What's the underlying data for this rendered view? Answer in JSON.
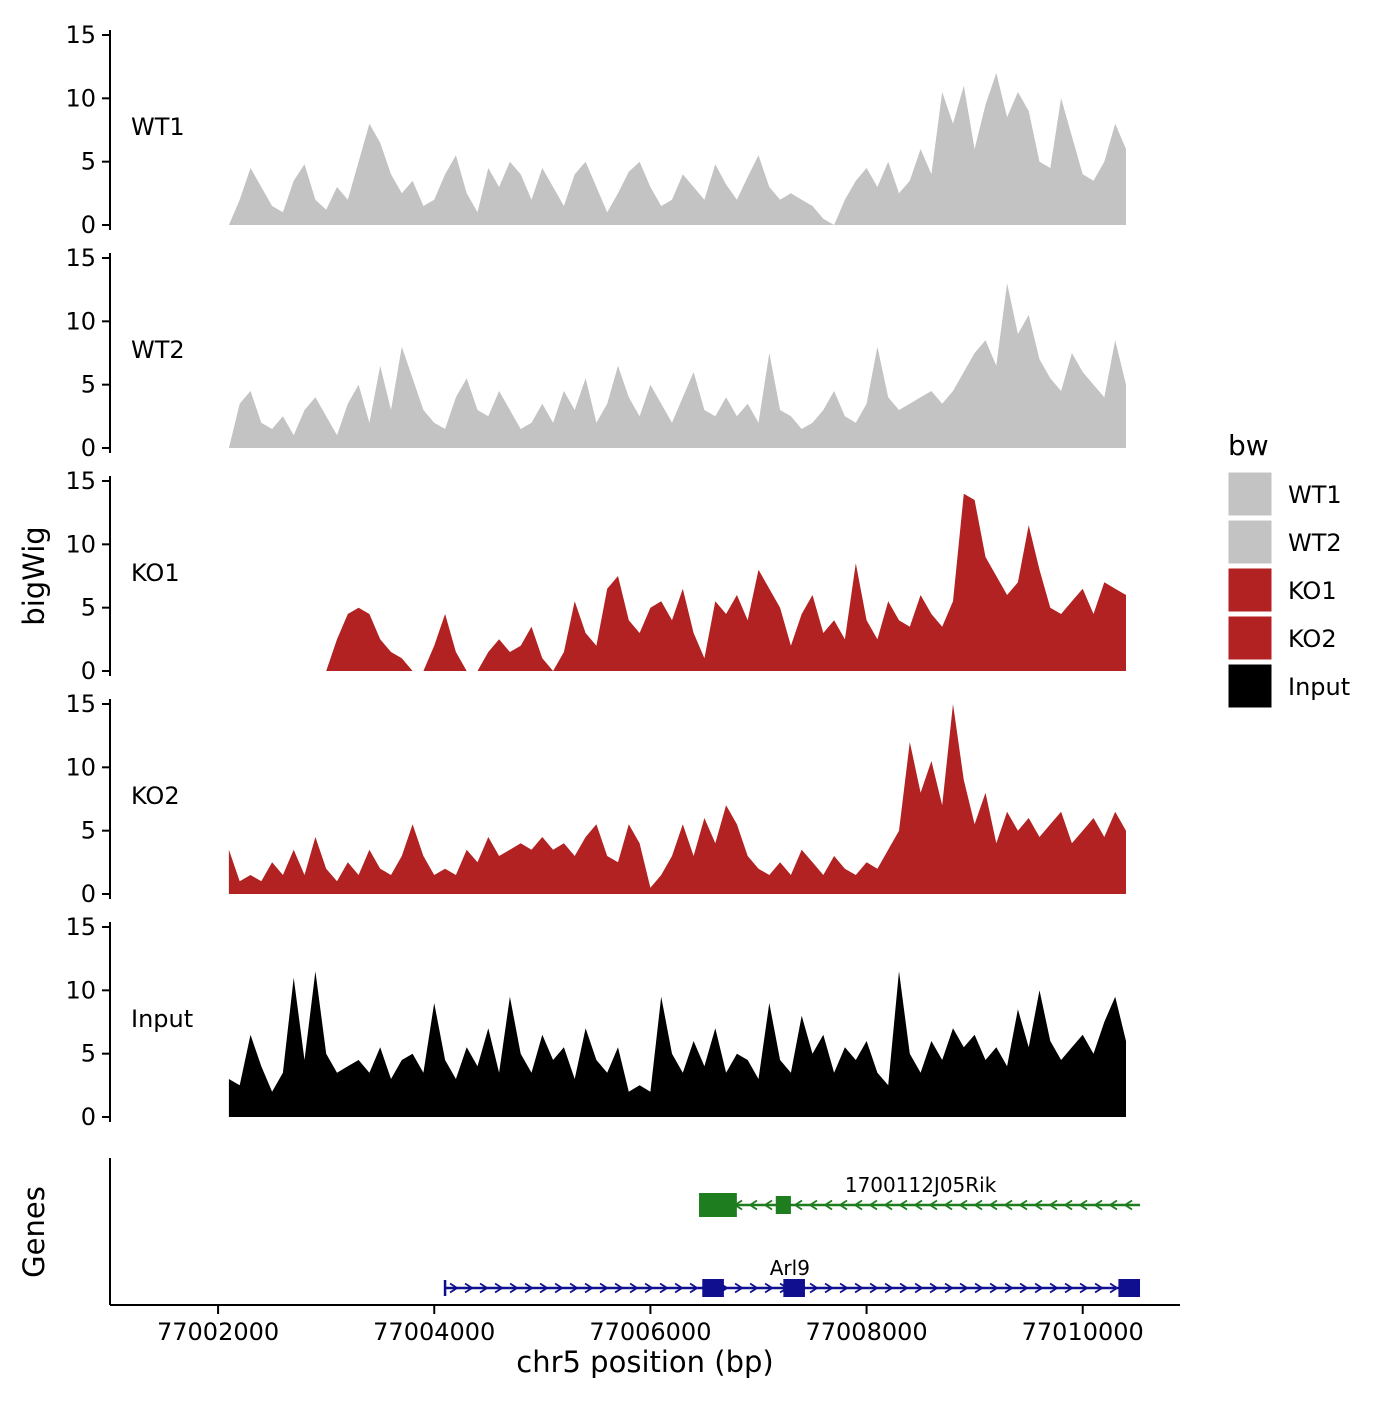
{
  "figure": {
    "ylabel": "bigWig",
    "genes_label": "Genes",
    "xlabel": "chr5 position (bp)"
  },
  "legend": {
    "title": "bw",
    "entries": [
      {
        "label": "WT1",
        "color": "#c3c3c3"
      },
      {
        "label": "WT2",
        "color": "#c3c3c3"
      },
      {
        "label": "KO1",
        "color": "#b22222"
      },
      {
        "label": "KO2",
        "color": "#b22222"
      },
      {
        "label": "Input",
        "color": "#000000"
      }
    ]
  },
  "chart_data": {
    "type": "area",
    "title": "",
    "xlabel": "chr5 position (bp)",
    "ylabel": "bigWig",
    "x_axis": {
      "min": 77001000,
      "max": 77010900,
      "ticks": [
        77002000,
        77004000,
        77006000,
        77008000,
        77010000
      ]
    },
    "y_axis": {
      "min": 0,
      "max": 15,
      "ticks": [
        0,
        5,
        10,
        15
      ]
    },
    "x_start": 77002100,
    "x_step": 100,
    "series": [
      {
        "name": "WT1",
        "color": "#c3c3c3",
        "values": [
          0,
          2,
          4.5,
          3,
          1.5,
          1,
          3.5,
          4.8,
          2,
          1.2,
          3,
          2,
          5,
          8,
          6.5,
          4,
          2.5,
          3.5,
          1.5,
          2,
          4,
          5.5,
          2.5,
          1,
          4.5,
          3,
          5,
          4,
          2,
          4.5,
          3,
          1.5,
          4,
          5,
          3,
          1,
          2.5,
          4.2,
          5,
          3,
          1.5,
          2,
          4,
          3,
          2,
          4.8,
          3.2,
          2,
          3.8,
          5.5,
          3,
          2,
          2.5,
          2,
          1.5,
          0.5,
          0,
          2,
          3.5,
          4.5,
          3,
          5,
          2.5,
          3.5,
          6,
          4,
          10.5,
          8,
          11,
          6,
          9.5,
          12,
          8.5,
          10.5,
          9,
          5,
          4.5,
          10,
          7,
          4,
          3.5,
          5,
          8,
          6
        ]
      },
      {
        "name": "WT2",
        "color": "#c3c3c3",
        "values": [
          0,
          3.5,
          4.5,
          2,
          1.5,
          2.5,
          1,
          3,
          4,
          2.5,
          1,
          3.5,
          5,
          2,
          6.5,
          3,
          8,
          5.5,
          3,
          2,
          1.5,
          4,
          5.5,
          3,
          2.5,
          4.5,
          3,
          1.5,
          2,
          3.5,
          2,
          4.5,
          3,
          5.5,
          2,
          3.5,
          6.5,
          4,
          2.5,
          5,
          3.5,
          2,
          4,
          6,
          3,
          2.5,
          4,
          2.5,
          3.5,
          2,
          7.5,
          3,
          2.5,
          1.5,
          2,
          3,
          4.5,
          2.5,
          2,
          3.5,
          8,
          4,
          3,
          3.5,
          4,
          4.5,
          3.5,
          4.5,
          6,
          7.5,
          8.5,
          6.5,
          13,
          9,
          10.5,
          7,
          5.5,
          4.5,
          7.5,
          6,
          5,
          4,
          8.5,
          5
        ]
      },
      {
        "name": "KO1",
        "color": "#b22222",
        "values": [
          0,
          0,
          0,
          0,
          0,
          0,
          0,
          0,
          0,
          0,
          2.5,
          4.5,
          5,
          4.5,
          2.5,
          1.5,
          1,
          0,
          0,
          2,
          4.5,
          1.5,
          0,
          0,
          1.5,
          2.5,
          1.5,
          2,
          3.5,
          1,
          0,
          1.5,
          5.5,
          3,
          2,
          6.5,
          7.5,
          4,
          3,
          5,
          5.5,
          4,
          6.5,
          3,
          1,
          5.5,
          4.5,
          6,
          4,
          8,
          6.5,
          5,
          2,
          4.5,
          6,
          3,
          4,
          2.5,
          8.5,
          4,
          2.5,
          5.5,
          4,
          3.5,
          6,
          4.5,
          3.5,
          5.5,
          14,
          13.5,
          9,
          7.5,
          6,
          7,
          11.5,
          8,
          5,
          4.5,
          5.5,
          6.5,
          4.5,
          7,
          6.5,
          6
        ]
      },
      {
        "name": "KO2",
        "color": "#b22222",
        "values": [
          3.5,
          1,
          1.5,
          1,
          2.5,
          1.5,
          3.5,
          1.5,
          4.5,
          2,
          1,
          2.5,
          1.5,
          3.5,
          2,
          1.5,
          3,
          5.5,
          3,
          1.5,
          2,
          1.5,
          3.5,
          2.5,
          4.5,
          3,
          3.5,
          4,
          3.5,
          4.5,
          3.5,
          4,
          3,
          4.5,
          5.5,
          3,
          2.5,
          5.5,
          4,
          0.5,
          1.5,
          3,
          5.5,
          3,
          6,
          4,
          7,
          5.5,
          3,
          2,
          1.5,
          2.5,
          1.5,
          3.5,
          2.5,
          1.5,
          3,
          2,
          1.5,
          2.5,
          2,
          3.5,
          5,
          12,
          8,
          10.5,
          7,
          15,
          9,
          5.5,
          8,
          4,
          6.5,
          5,
          6,
          4.5,
          5.5,
          6.5,
          4,
          5,
          6,
          4.5,
          6.5,
          5
        ]
      },
      {
        "name": "Input",
        "color": "#000000",
        "values": [
          3,
          2.5,
          6.5,
          4,
          2,
          3.5,
          11,
          4.5,
          11.5,
          5,
          3.5,
          4,
          4.5,
          3.5,
          5.5,
          3,
          4.5,
          5,
          3.5,
          9,
          4.5,
          3,
          5.5,
          4,
          7,
          3.5,
          9.5,
          5,
          3.5,
          6.5,
          4.5,
          5.5,
          3,
          7,
          4.5,
          3.5,
          5.5,
          2,
          2.5,
          2,
          9.5,
          5,
          3.5,
          6,
          4,
          7,
          3.5,
          5,
          4.5,
          3,
          9,
          4.5,
          3.5,
          8,
          5,
          6.5,
          3.5,
          5.5,
          4.5,
          6,
          3.5,
          2.5,
          11.5,
          5,
          3.5,
          6,
          4.5,
          7,
          5.5,
          6.5,
          4.5,
          5.5,
          4,
          8.5,
          5.5,
          10,
          6,
          4.5,
          5.5,
          6.5,
          5,
          7.5,
          9.5,
          6
        ]
      }
    ],
    "genes": [
      {
        "name": "1700112J05Rik",
        "strand": "-",
        "color": "#1e7d1e",
        "row": 0,
        "start": 77006450,
        "end": 77010530,
        "label_x": 77008500,
        "exons": [
          [
            77006450,
            77006800,
            24
          ],
          [
            77007160,
            77007300,
            18
          ]
        ],
        "start_tick": false
      },
      {
        "name": "Arl9",
        "strand": "+",
        "color": "#0f0f8f",
        "row": 1,
        "start": 77004100,
        "end": 77010530,
        "label_x": 77007290,
        "exons": [
          [
            77006480,
            77006680,
            18
          ],
          [
            77007230,
            77007430,
            18
          ],
          [
            77010330,
            77010530,
            18
          ]
        ],
        "start_tick": true
      }
    ]
  }
}
